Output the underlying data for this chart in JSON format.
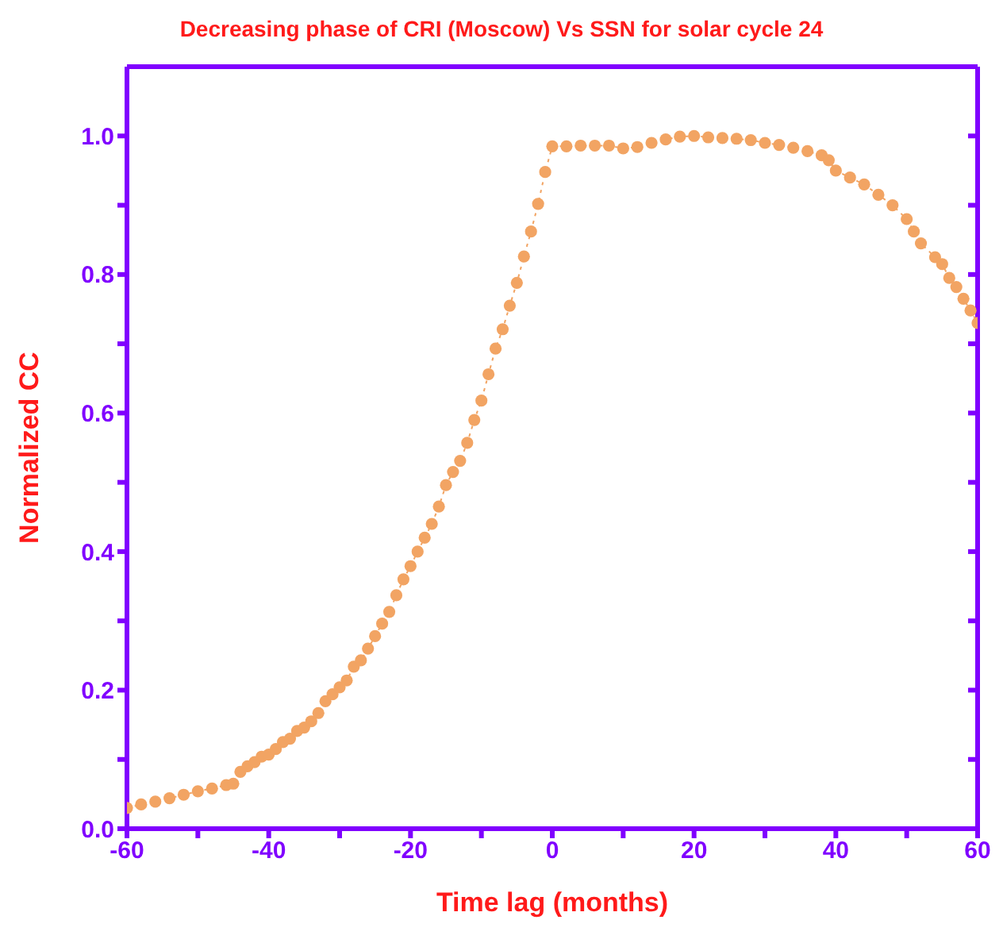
{
  "chart_data": {
    "type": "line",
    "title": "Decreasing phase of CRI (Moscow) Vs SSN for solar cycle 24",
    "xlabel": "Time lag (months)",
    "ylabel": "Normalized CC",
    "marker": "circle",
    "line_style": "dotted",
    "xlim": [
      -60,
      60
    ],
    "ylim": [
      0,
      1.1
    ],
    "xticks": [
      -60,
      {
        "value": -50,
        "label": null
      },
      -40,
      {
        "value": -30,
        "label": null
      },
      -20,
      {
        "value": -10,
        "label": null
      },
      0,
      {
        "value": 10,
        "label": null
      },
      20,
      {
        "value": 30,
        "label": null
      },
      40,
      {
        "value": 50,
        "label": null
      },
      60
    ],
    "yticks": [
      {
        "value": 0,
        "label": "0.0"
      },
      {
        "value": 0.1,
        "label": null
      },
      {
        "value": 0.2,
        "label": "0.2"
      },
      {
        "value": 0.3,
        "label": null
      },
      {
        "value": 0.4,
        "label": "0.4"
      },
      {
        "value": 0.5,
        "label": null
      },
      {
        "value": 0.6,
        "label": "0.6"
      },
      {
        "value": 0.7,
        "label": null
      },
      {
        "value": 0.8,
        "label": "0.8"
      },
      {
        "value": 0.9,
        "label": null
      },
      {
        "value": 1,
        "label": "1.0"
      }
    ],
    "series": [
      {
        "color": "#f2a463",
        "x": [
          -60,
          -58,
          -56,
          -54,
          -52,
          -50,
          -48,
          -46,
          -45,
          -44,
          -43,
          -42,
          -41,
          -40,
          -39,
          -38,
          -37,
          -36,
          -35,
          -34,
          -33,
          -32,
          -31,
          -30,
          -29,
          -28,
          -27,
          -26,
          -25,
          -24,
          -23,
          -22,
          -21,
          -20,
          -19,
          -18,
          -17,
          -16,
          -15,
          -14,
          -13,
          -12,
          -11,
          -10,
          -9,
          -8,
          -7,
          -6,
          -5,
          -4,
          -3,
          -2,
          -1,
          0,
          2,
          4,
          6,
          8,
          10,
          12,
          14,
          16,
          18,
          20,
          22,
          24,
          26,
          28,
          30,
          32,
          34,
          36,
          38,
          39,
          40,
          42,
          44,
          46,
          48,
          50,
          51,
          52,
          54,
          55,
          56,
          57,
          58,
          59,
          60
        ],
        "values": [
          0.03,
          0.035,
          0.039,
          0.044,
          0.049,
          0.054,
          0.058,
          0.063,
          0.065,
          0.082,
          0.09,
          0.096,
          0.104,
          0.107,
          0.115,
          0.125,
          0.13,
          0.141,
          0.146,
          0.155,
          0.167,
          0.184,
          0.194,
          0.204,
          0.214,
          0.234,
          0.243,
          0.26,
          0.278,
          0.296,
          0.313,
          0.337,
          0.36,
          0.379,
          0.4,
          0.42,
          0.44,
          0.465,
          0.496,
          0.515,
          0.531,
          0.557,
          0.59,
          0.618,
          0.656,
          0.693,
          0.721,
          0.755,
          0.788,
          0.826,
          0.862,
          0.902,
          0.948,
          0.985,
          0.985,
          0.986,
          0.986,
          0.986,
          0.982,
          0.984,
          0.99,
          0.995,
          0.999,
          1.0,
          0.998,
          0.997,
          0.996,
          0.994,
          0.99,
          0.987,
          0.983,
          0.978,
          0.972,
          0.965,
          0.95,
          0.94,
          0.93,
          0.915,
          0.9,
          0.88,
          0.862,
          0.845,
          0.825,
          0.815,
          0.795,
          0.782,
          0.765,
          0.748,
          0.73
        ]
      }
    ]
  }
}
